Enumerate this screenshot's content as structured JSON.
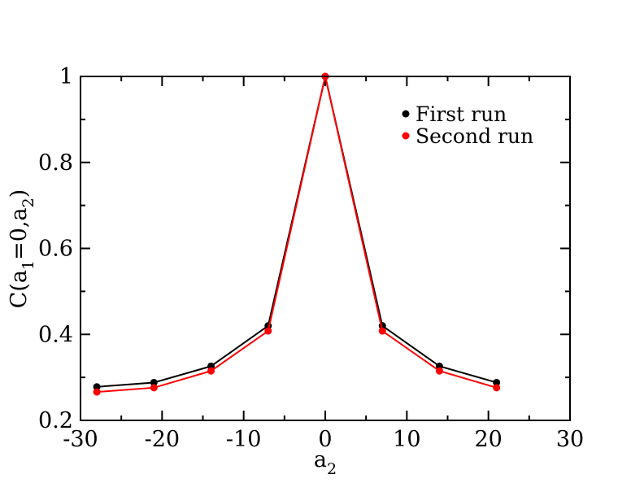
{
  "chart_data": {
    "type": "line",
    "x_ticks": [
      "-30",
      "-20",
      "-10",
      "0",
      "10",
      "20",
      "30"
    ],
    "y_ticks": [
      "0.2",
      "0.4",
      "0.6",
      "0.8",
      "1"
    ],
    "xlabel": {
      "base": "a",
      "sub": "2"
    },
    "ylabel": {
      "p1": "C(a",
      "s1": "1",
      "p2": "=0,a",
      "s2": "2",
      "p3": ")"
    },
    "xlim": [
      -30,
      30
    ],
    "ylim": [
      0.2,
      1.0
    ],
    "x_minor_step": 5,
    "y_minor_step": 0.1,
    "grid": false,
    "legend_position": "top-right",
    "series": [
      {
        "name": "First run",
        "color": "#000000",
        "x": [
          -28,
          -21,
          -14,
          -7,
          0,
          7,
          14,
          21
        ],
        "y": [
          0.278,
          0.288,
          0.326,
          0.42,
          1.0,
          0.42,
          0.326,
          0.288
        ]
      },
      {
        "name": "Second run",
        "color": "#ff0000",
        "x": [
          -28,
          -21,
          -14,
          -7,
          0,
          7,
          14,
          21
        ],
        "y": [
          0.266,
          0.276,
          0.315,
          0.408,
          1.0,
          0.408,
          0.315,
          0.276
        ]
      }
    ]
  }
}
